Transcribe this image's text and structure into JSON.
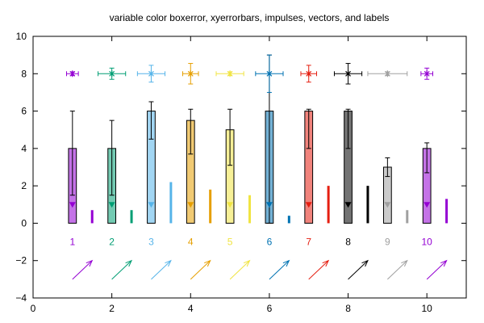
{
  "chart_data": {
    "type": "bar",
    "title": "variable color boxerror, xyerrorbars, impulses, vectors, and labels",
    "xlim": [
      0,
      11
    ],
    "ylim": [
      -4,
      10
    ],
    "x_ticks": [
      0,
      2,
      4,
      6,
      8,
      10
    ],
    "y_ticks": [
      -4,
      -2,
      0,
      2,
      4,
      6,
      8,
      10
    ],
    "grid": false,
    "legend": "none",
    "colors": [
      "#9400d3",
      "#009e73",
      "#56b4e9",
      "#e69f00",
      "#f0e442",
      "#0072b2",
      "#e51e10",
      "#000000",
      "#a0a0a0",
      "#9400d3"
    ],
    "boxerror": {
      "x": [
        1,
        2,
        3,
        4,
        5,
        6,
        7,
        8,
        9,
        10
      ],
      "y": [
        4,
        4,
        6,
        5.5,
        5,
        6,
        6,
        6,
        3,
        4
      ],
      "yerr_low": [
        1.5,
        1.5,
        4.5,
        3.7,
        3.1,
        0,
        4,
        4,
        2.5,
        2.7
      ],
      "yerr_high": [
        6,
        5.5,
        6.5,
        6.1,
        6.1,
        9,
        6.1,
        6.1,
        3.5,
        4.3
      ],
      "box_width": 0.2
    },
    "points": {
      "x": [
        1,
        2,
        3,
        4,
        5,
        6,
        7,
        8,
        9,
        10
      ],
      "y": [
        1,
        1,
        1,
        1,
        1,
        1,
        1,
        1,
        1,
        1
      ]
    },
    "xyerrorbars": {
      "x": [
        1,
        2,
        3,
        4,
        5,
        6,
        7,
        8,
        9,
        10
      ],
      "y": [
        8,
        8,
        8,
        8,
        8,
        8,
        8,
        8,
        8,
        8
      ],
      "xerr": [
        0.15,
        0.35,
        0.35,
        0.2,
        0.35,
        0.35,
        0.2,
        0.35,
        0.5,
        0.15
      ],
      "yerr": [
        0.1,
        0.3,
        0.45,
        0.55,
        0.1,
        1,
        0.45,
        0.55,
        0.1,
        0.3
      ]
    },
    "impulses": {
      "x": [
        1.5,
        2.5,
        3.5,
        4.5,
        5.5,
        6.5,
        7.5,
        8.5,
        9.5,
        10.5
      ],
      "y": [
        0.7,
        0.7,
        2.2,
        1.8,
        1.5,
        0.4,
        2,
        2,
        0.7,
        1.3
      ]
    },
    "labels": {
      "x": [
        1,
        2,
        3,
        4,
        5,
        6,
        7,
        8,
        9,
        10
      ],
      "y": [
        -1,
        -1,
        -1,
        -1,
        -1,
        -1,
        -1,
        -1,
        -1,
        -1
      ],
      "text": [
        "1",
        "2",
        "3",
        "4",
        "5",
        "6",
        "7",
        "8",
        "9",
        "10"
      ]
    },
    "vectors": {
      "x": [
        1,
        2,
        3,
        4,
        5,
        6,
        7,
        8,
        9,
        10
      ],
      "y": [
        -3,
        -3,
        -3,
        -3,
        -3,
        -3,
        -3,
        -3,
        -3,
        -3
      ],
      "dx": [
        0.5,
        0.5,
        0.5,
        0.5,
        0.5,
        0.5,
        0.5,
        0.5,
        0.5,
        0.5
      ],
      "dy": [
        1,
        1,
        1,
        1,
        1,
        1,
        1,
        1,
        1,
        1
      ]
    }
  }
}
